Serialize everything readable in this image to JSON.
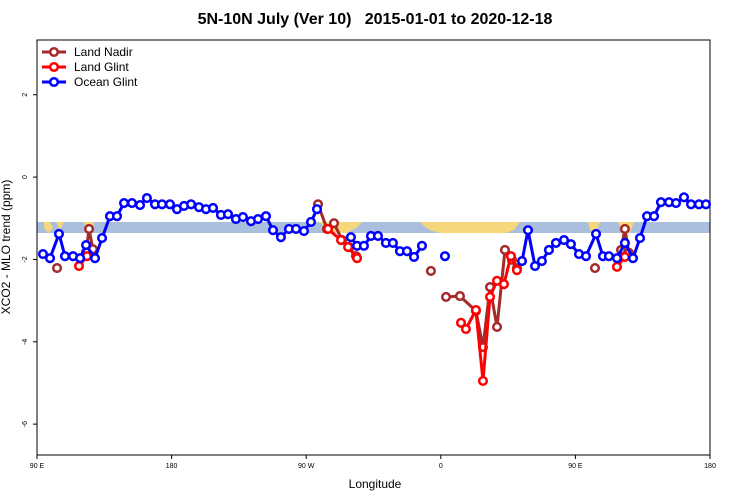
{
  "chart_data": {
    "type": "line",
    "title": "5N-10N July (Ver 10)   2015-01-01 to 2020-12-18",
    "x_label": "Longitude",
    "y_label": "XCO2 - MLO trend (ppm)",
    "xlim": [
      90,
      540
    ],
    "xticks": [
      {
        "value": 90,
        "label": "90 E"
      },
      180,
      {
        "value": 270,
        "label": "90 W"
      },
      {
        "value": 360,
        "label": "0"
      },
      {
        "value": 450,
        "label": "90 E"
      },
      {
        "value": 540,
        "label": "180"
      }
    ],
    "ylim": [
      -6.75,
      3.33
    ],
    "yticks": [
      -6,
      -4,
      -2,
      0,
      2
    ],
    "legend": "top-left",
    "series": [
      {
        "name": "Land Nadir",
        "color": "#a52a2a",
        "x": [
          103.4,
          null,
          122.8,
          124.8,
          127.4,
          null,
          277.9,
          283.9,
          288.6,
          294.0,
          298.6,
          303.3,
          null,
          353.4,
          null,
          363.5,
          372.8,
          383.5,
          388.2,
          392.9,
          397.6,
          402.9,
          407.6,
          410.9,
          null,
          463.1,
          null,
          480.5,
          483.1,
          485.8
        ],
        "values": [
          -2.21,
          null,
          -1.82,
          -1.26,
          -1.75,
          null,
          -0.66,
          -1.26,
          -1.12,
          -1.53,
          -1.7,
          -1.92,
          null,
          -2.28,
          null,
          -2.91,
          -2.89,
          -3.25,
          -4.13,
          -2.67,
          -3.64,
          -1.77,
          -2.01,
          -2.21,
          null,
          -2.21,
          null,
          -1.77,
          -1.26,
          -1.84
        ]
      },
      {
        "name": "Land Glint",
        "color": "#ff0000",
        "x": [
          118.1,
          123.4,
          null,
          284.6,
          293.3,
          298.0,
          304.0,
          null,
          373.5,
          376.8,
          383.5,
          388.2,
          392.9,
          397.6,
          402.2,
          406.9,
          410.9,
          null,
          477.8,
          483.1
        ],
        "values": [
          -2.16,
          -1.92,
          null,
          -1.26,
          -1.53,
          -1.7,
          -1.97,
          null,
          -3.54,
          -3.69,
          -3.23,
          -4.95,
          -2.91,
          -2.52,
          -2.6,
          -1.92,
          -2.26,
          null,
          -2.18,
          -1.94
        ]
      },
      {
        "name": "Ocean Glint",
        "color": "#0000ff",
        "x": [
          94.0,
          98.7,
          104.7,
          108.7,
          114.1,
          118.8,
          122.8,
          128.8,
          133.5,
          138.8,
          143.5,
          148.2,
          153.5,
          158.9,
          163.5,
          168.9,
          173.6,
          178.9,
          183.6,
          188.3,
          193.0,
          198.3,
          203.0,
          207.7,
          213.0,
          217.7,
          223.0,
          227.7,
          233.1,
          237.8,
          243.1,
          247.8,
          253.1,
          258.5,
          263.2,
          268.5,
          273.2,
          277.2,
          null,
          299.9,
          304.0,
          308.6,
          313.3,
          318.0,
          323.3,
          328.0,
          332.7,
          337.4,
          342.1,
          347.4,
          null,
          362.8,
          null,
          414.3,
          418.3,
          423.0,
          427.6,
          432.3,
          437.0,
          442.4,
          447.0,
          452.4,
          457.1,
          463.8,
          468.4,
          472.4,
          477.8,
          483.1,
          488.5,
          493.2,
          497.9,
          502.6,
          507.2,
          512.6,
          517.3,
          522.6,
          527.3,
          532.6,
          537.3
        ],
        "values": [
          -1.87,
          -1.97,
          -1.38,
          -1.92,
          -1.92,
          -1.97,
          -1.65,
          -1.97,
          -1.48,
          -0.95,
          -0.95,
          -0.63,
          -0.63,
          -0.68,
          -0.51,
          -0.66,
          -0.66,
          -0.66,
          -0.78,
          -0.7,
          -0.66,
          -0.73,
          -0.78,
          -0.75,
          -0.92,
          -0.9,
          -1.02,
          -0.97,
          -1.07,
          -1.02,
          -0.95,
          -1.29,
          -1.46,
          -1.26,
          -1.26,
          -1.31,
          -1.09,
          -0.78,
          null,
          -1.46,
          -1.67,
          -1.67,
          -1.43,
          -1.43,
          -1.6,
          -1.6,
          -1.8,
          -1.8,
          -1.94,
          -1.67,
          null,
          -1.92,
          null,
          -2.04,
          -1.29,
          -2.16,
          -2.04,
          -1.77,
          -1.6,
          -1.53,
          -1.63,
          -1.87,
          -1.92,
          -1.38,
          -1.92,
          -1.92,
          -1.97,
          -1.6,
          -1.97,
          -1.48,
          -0.95,
          -0.95,
          -0.61,
          -0.61,
          -0.63,
          -0.49,
          -0.66,
          -0.66,
          -0.66
        ]
      }
    ]
  }
}
